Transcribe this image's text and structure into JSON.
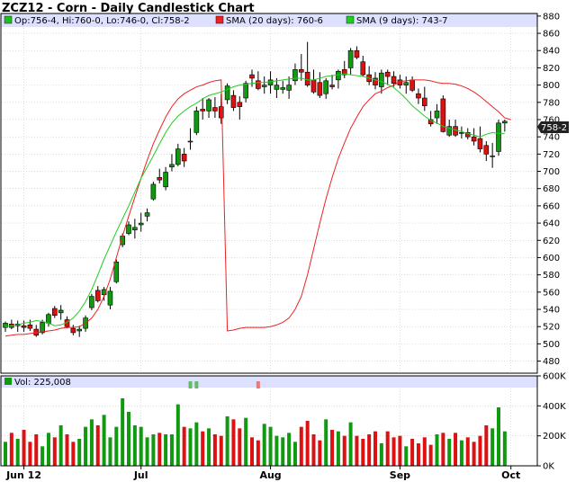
{
  "chart_data": {
    "type": "candlestick",
    "title": "ZCZ12 - Corn - Daily Candlestick Chart",
    "ohlc_label": "Op:756-4, Hi:760-0, Lo:746-0, Cl:758-2",
    "sma20_label": "SMA (20 days): 760-6",
    "sma9_label": "SMA (9 days): 743-7",
    "last_price_label": "758-2",
    "volume_label": "Vol: 225,008",
    "y_ticks": [
      "880",
      "860",
      "840",
      "820",
      "800",
      "780",
      "760",
      "740",
      "720",
      "700",
      "680",
      "660",
      "640",
      "620",
      "600",
      "580",
      "560",
      "540",
      "520",
      "500",
      "480"
    ],
    "y_tick_values": [
      880,
      860,
      840,
      820,
      800,
      780,
      760,
      740,
      720,
      700,
      680,
      660,
      640,
      620,
      600,
      580,
      560,
      540,
      520,
      500,
      480
    ],
    "ylim": [
      466,
      883
    ],
    "volume_ticks": [
      "600K",
      "400K",
      "200K",
      "0K"
    ],
    "volume_tick_values": [
      600000,
      400000,
      200000,
      0
    ],
    "volume_lim": [
      0,
      600000
    ],
    "x_labels": [
      "Jun 12",
      "Jul",
      "Aug",
      "Sep",
      "Oct"
    ],
    "x_label_index": [
      3,
      22,
      43,
      64,
      82
    ],
    "colors": {
      "up": "#119911",
      "down": "#dd1111",
      "sma20": "#ee2222",
      "sma9": "#22cc22",
      "header": "#dde0ff",
      "grid": "#c8c8c8"
    },
    "candles": [
      [
        519,
        526,
        514,
        524
      ],
      [
        523,
        528,
        517,
        519
      ],
      [
        521,
        527,
        514,
        523
      ],
      [
        521,
        527,
        514,
        519
      ],
      [
        522,
        528,
        515,
        518
      ],
      [
        517,
        522,
        508,
        510
      ],
      [
        513,
        528,
        511,
        525
      ],
      [
        524,
        536,
        520,
        534
      ],
      [
        541,
        544,
        530,
        533
      ],
      [
        536,
        545,
        528,
        539
      ],
      [
        528,
        532,
        518,
        520
      ],
      [
        518,
        522,
        510,
        513
      ],
      [
        515,
        521,
        508,
        517
      ],
      [
        518,
        533,
        514,
        530
      ],
      [
        542,
        558,
        539,
        555
      ],
      [
        562,
        567,
        548,
        550
      ],
      [
        557,
        566,
        550,
        563
      ],
      [
        545,
        566,
        540,
        561
      ],
      [
        572,
        598,
        570,
        595
      ],
      [
        615,
        628,
        612,
        625
      ],
      [
        628,
        642,
        626,
        638
      ],
      [
        632,
        645,
        622,
        635
      ],
      [
        638,
        652,
        630,
        640
      ],
      [
        648,
        657,
        642,
        652
      ],
      [
        668,
        688,
        666,
        685
      ],
      [
        693,
        703,
        686,
        690
      ],
      [
        682,
        705,
        678,
        699
      ],
      [
        705,
        720,
        700,
        708
      ],
      [
        708,
        732,
        706,
        726
      ],
      [
        720,
        727,
        705,
        712
      ],
      [
        735,
        750,
        725,
        735
      ],
      [
        745,
        775,
        742,
        770
      ],
      [
        772,
        785,
        760,
        770
      ],
      [
        770,
        785,
        762,
        783
      ],
      [
        774,
        786,
        762,
        770
      ],
      [
        775,
        790,
        755,
        762
      ],
      [
        783,
        802,
        778,
        799
      ],
      [
        788,
        794,
        770,
        774
      ],
      [
        780,
        787,
        760,
        775
      ],
      [
        785,
        805,
        780,
        802
      ],
      [
        812,
        818,
        798,
        808
      ],
      [
        805,
        816,
        794,
        796
      ],
      [
        798,
        810,
        790,
        800
      ],
      [
        800,
        816,
        790,
        806
      ],
      [
        795,
        808,
        785,
        800
      ],
      [
        795,
        805,
        790,
        797
      ],
      [
        794,
        810,
        784,
        800
      ],
      [
        805,
        825,
        800,
        818
      ],
      [
        818,
        836,
        805,
        815
      ],
      [
        815,
        850,
        798,
        800
      ],
      [
        806,
        818,
        790,
        792
      ],
      [
        803,
        815,
        785,
        788
      ],
      [
        790,
        808,
        784,
        805
      ],
      [
        800,
        812,
        795,
        798
      ],
      [
        806,
        818,
        796,
        816
      ],
      [
        818,
        828,
        808,
        812
      ],
      [
        820,
        843,
        812,
        840
      ],
      [
        840,
        845,
        830,
        832
      ],
      [
        827,
        834,
        810,
        812
      ],
      [
        812,
        822,
        800,
        804
      ],
      [
        808,
        815,
        795,
        800
      ],
      [
        798,
        818,
        790,
        814
      ],
      [
        815,
        818,
        800,
        810
      ],
      [
        810,
        816,
        798,
        802
      ],
      [
        806,
        812,
        796,
        800
      ],
      [
        800,
        810,
        790,
        803
      ],
      [
        806,
        810,
        792,
        794
      ],
      [
        790,
        796,
        778,
        785
      ],
      [
        785,
        798,
        770,
        776
      ],
      [
        760,
        770,
        752,
        755
      ],
      [
        762,
        778,
        755,
        770
      ],
      [
        784,
        788,
        745,
        746
      ],
      [
        742,
        760,
        740,
        752
      ],
      [
        752,
        760,
        740,
        742
      ],
      [
        744,
        752,
        738,
        745
      ],
      [
        745,
        750,
        737,
        740
      ],
      [
        740,
        750,
        730,
        735
      ],
      [
        738,
        752,
        722,
        726
      ],
      [
        730,
        735,
        712,
        720
      ],
      [
        718,
        733,
        704,
        718
      ],
      [
        723,
        760,
        718,
        756
      ],
      [
        756,
        760,
        746,
        758
      ]
    ],
    "volume": [
      160000,
      220000,
      180000,
      240000,
      160000,
      210000,
      130000,
      220000,
      190000,
      270000,
      210000,
      160000,
      180000,
      260000,
      310000,
      270000,
      340000,
      190000,
      260000,
      450000,
      360000,
      270000,
      260000,
      190000,
      210000,
      220000,
      210000,
      210000,
      410000,
      260000,
      250000,
      290000,
      230000,
      250000,
      210000,
      200000,
      330000,
      310000,
      250000,
      320000,
      190000,
      170000,
      280000,
      260000,
      200000,
      190000,
      220000,
      160000,
      260000,
      300000,
      210000,
      170000,
      310000,
      240000,
      230000,
      200000,
      290000,
      200000,
      180000,
      210000,
      230000,
      150000,
      230000,
      190000,
      200000,
      130000,
      180000,
      150000,
      190000,
      140000,
      210000,
      220000,
      180000,
      220000,
      170000,
      190000,
      160000,
      200000,
      270000,
      250000,
      390000,
      230000
    ],
    "volume_highlight": [
      [
        620000,
        520000
      ],
      [
        590000,
        540000
      ],
      null,
      null,
      null,
      null,
      [
        600000,
        510000
      ]
    ],
    "volume_highlight_index": [
      30,
      31,
      32,
      33,
      34,
      35,
      41
    ],
    "sma20": [
      515,
      516,
      518,
      519,
      519,
      519,
      519,
      520,
      522,
      525,
      530,
      540,
      555,
      580,
      610,
      640,
      668,
      693,
      715,
      733,
      750,
      763,
      775,
      783,
      790,
      793,
      797,
      800,
      804,
      805,
      806,
      806,
      806,
      805,
      803,
      802,
      802,
      801,
      799,
      796,
      792,
      787,
      781,
      775,
      769,
      762,
      760
    ],
    "sma20_start": 36,
    "sma20_start_values": [
      509,
      510,
      511,
      511,
      512,
      513,
      514,
      515,
      516,
      518,
      519,
      519,
      520,
      524,
      530,
      540,
      555,
      575,
      600,
      625,
      648,
      670,
      692,
      713,
      732,
      748,
      763,
      775,
      784,
      790,
      794,
      798,
      800,
      803,
      805,
      806
    ],
    "sma9": [
      520,
      521,
      522,
      524,
      525,
      527,
      526,
      524,
      521,
      522,
      525,
      530,
      538,
      549,
      563,
      580,
      598,
      614,
      630,
      645,
      660,
      676,
      692,
      705,
      718,
      732,
      745,
      756,
      764,
      770,
      775,
      779,
      784,
      788,
      790,
      792,
      795,
      798,
      800,
      801,
      802,
      803,
      803,
      804,
      805,
      806,
      807,
      808,
      808,
      806,
      806,
      808,
      810,
      811,
      812,
      813,
      812,
      811,
      810,
      808,
      806,
      804,
      801,
      797,
      791,
      784,
      776,
      770,
      764,
      759,
      756,
      752,
      750,
      748,
      746,
      744,
      742,
      740,
      743,
      745,
      744,
      744
    ]
  }
}
